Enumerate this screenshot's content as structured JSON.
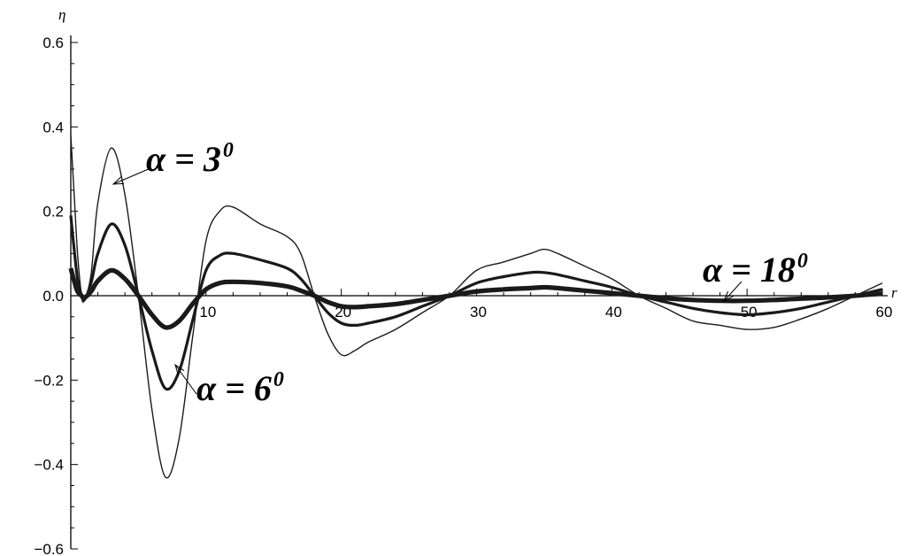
{
  "chart_data": {
    "type": "line",
    "title": "",
    "xlabel": "r",
    "ylabel": "η",
    "xlim": [
      0,
      60
    ],
    "ylim": [
      -0.6,
      0.6
    ],
    "grid": false,
    "x_ticks": [
      10,
      20,
      30,
      40,
      50,
      60
    ],
    "x_tick_labels": [
      "10",
      "20",
      "30",
      "40",
      "50",
      "60"
    ],
    "y_ticks": [
      0.6,
      0.4,
      0.2,
      0.0,
      -0.2,
      -0.4,
      -0.6
    ],
    "y_tick_labels": [
      "0.6",
      "0.4",
      "0.2",
      "0.0",
      "−0.2",
      "−0.4",
      "−0.6"
    ],
    "series": [
      {
        "name": "α = 3⁰",
        "x": [
          0,
          0.25,
          0.5,
          0.8,
          1.0,
          1.5,
          2,
          3,
          4,
          5,
          6,
          7,
          8,
          9,
          10,
          11,
          12,
          14,
          16,
          17,
          18,
          19,
          20,
          21,
          22,
          24,
          26,
          28,
          30,
          32,
          34,
          35,
          36,
          38,
          40,
          42,
          44,
          46,
          48,
          50,
          52,
          54,
          56,
          58,
          60
        ],
        "y": [
          0.38,
          0.24,
          0.1,
          0.0,
          -0.01,
          0.05,
          0.22,
          0.35,
          0.24,
          0.0,
          -0.27,
          -0.43,
          -0.34,
          -0.1,
          0.13,
          0.2,
          0.21,
          0.17,
          0.14,
          0.1,
          0.0,
          -0.09,
          -0.14,
          -0.13,
          -0.11,
          -0.08,
          -0.04,
          0.0,
          0.06,
          0.08,
          0.1,
          0.11,
          0.1,
          0.07,
          0.04,
          0.0,
          -0.03,
          -0.06,
          -0.07,
          -0.08,
          -0.075,
          -0.055,
          -0.03,
          0.0,
          0.03
        ]
      },
      {
        "name": "α = 6⁰",
        "x": [
          0,
          0.25,
          0.5,
          0.8,
          1.0,
          1.5,
          2,
          3,
          4,
          5,
          6,
          7,
          8,
          9,
          10,
          11,
          12,
          14,
          16,
          17,
          18,
          19,
          20,
          21,
          22,
          24,
          26,
          28,
          30,
          32,
          34,
          35,
          36,
          38,
          40,
          42,
          44,
          46,
          48,
          50,
          52,
          54,
          56,
          58,
          60
        ],
        "y": [
          0.19,
          0.11,
          0.04,
          0.0,
          -0.01,
          0.03,
          0.1,
          0.17,
          0.12,
          0.0,
          -0.13,
          -0.22,
          -0.18,
          -0.06,
          0.06,
          0.095,
          0.1,
          0.085,
          0.065,
          0.04,
          0.0,
          -0.04,
          -0.065,
          -0.07,
          -0.065,
          -0.05,
          -0.025,
          0.0,
          0.03,
          0.045,
          0.055,
          0.055,
          0.05,
          0.035,
          0.02,
          0.0,
          -0.015,
          -0.03,
          -0.04,
          -0.045,
          -0.04,
          -0.03,
          -0.015,
          0.0,
          0.015
        ]
      },
      {
        "name": "α = 18⁰",
        "x": [
          0,
          0.25,
          0.5,
          0.8,
          1.0,
          1.5,
          2,
          3,
          4,
          5,
          6,
          7,
          8,
          9,
          10,
          11,
          12,
          14,
          16,
          17,
          18,
          19,
          20,
          21,
          22,
          24,
          26,
          28,
          30,
          32,
          34,
          35,
          36,
          38,
          40,
          42,
          44,
          46,
          48,
          50,
          52,
          54,
          56,
          58,
          60
        ],
        "y": [
          0.065,
          0.035,
          0.01,
          0.0,
          -0.005,
          0.01,
          0.035,
          0.06,
          0.04,
          0.0,
          -0.045,
          -0.075,
          -0.06,
          -0.02,
          0.015,
          0.03,
          0.033,
          0.03,
          0.022,
          0.012,
          0.0,
          -0.015,
          -0.025,
          -0.027,
          -0.025,
          -0.02,
          -0.01,
          0.0,
          0.01,
          0.015,
          0.018,
          0.02,
          0.018,
          0.012,
          0.006,
          0.0,
          -0.006,
          -0.01,
          -0.012,
          -0.012,
          -0.01,
          -0.007,
          -0.004,
          0.0,
          0.005
        ]
      }
    ],
    "annotations": [
      {
        "text": "α = 3",
        "sup": "0"
      },
      {
        "text": "α = 6",
        "sup": "0"
      },
      {
        "text": "α = 18",
        "sup": "0"
      }
    ]
  }
}
